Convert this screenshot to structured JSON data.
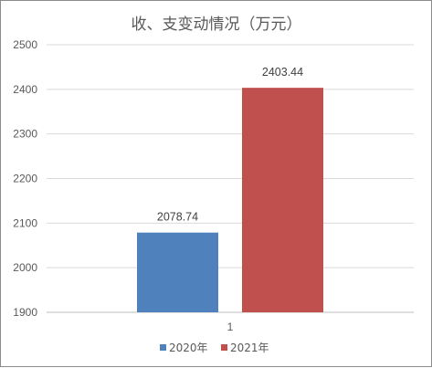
{
  "chart_data": {
    "type": "bar",
    "title": "收、支变动情况（万元）",
    "categories": [
      "1"
    ],
    "series": [
      {
        "name": "2020年",
        "values": [
          2078.74
        ],
        "color": "#4f81bd"
      },
      {
        "name": "2021年",
        "values": [
          2403.44
        ],
        "color": "#c0504d"
      }
    ],
    "ylim": [
      1900,
      2500
    ],
    "yticks": [
      1900,
      2000,
      2100,
      2200,
      2300,
      2400,
      2500
    ],
    "data_labels": [
      "2078.74",
      "2403.44"
    ],
    "grid": true,
    "legend_position": "bottom"
  }
}
